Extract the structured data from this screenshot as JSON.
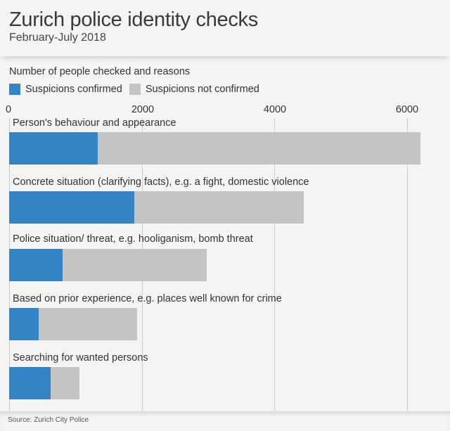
{
  "header": {
    "title": "Zurich police identity checks",
    "subtitle": "February-July 2018"
  },
  "chart": {
    "label": "Number of people checked and reasons",
    "legend": [
      {
        "label": "Suspicions confirmed",
        "color": "#3584c6"
      },
      {
        "label": "Suspicions not confirmed",
        "color": "#c4c4c4"
      }
    ],
    "ticks": [
      "0",
      "2000",
      "4000",
      "6000"
    ]
  },
  "footer": {
    "source": "Source: Zurich City Police"
  },
  "chart_data": {
    "type": "bar",
    "orientation": "horizontal",
    "stacked": true,
    "title": "Zurich police identity checks",
    "subtitle": "February-July 2018",
    "xlabel": "Number of people checked and reasons",
    "ylabel": "",
    "xlim": [
      0,
      6500
    ],
    "xticks": [
      0,
      2000,
      4000,
      6000
    ],
    "grid": true,
    "legend_position": "top",
    "categories": [
      "Person's behaviour and appearance",
      "Concrete situation (clarifying facts), e.g. a fight, domestic violence",
      "Police situation/ threat, e.g. hooliganism, bomb threat",
      "Based on prior experience, e.g. places well known for crime",
      "Searching for wanted persons"
    ],
    "series": [
      {
        "name": "Suspicions confirmed",
        "color": "#3584c6",
        "values": [
          1340,
          1890,
          810,
          450,
          625
        ]
      },
      {
        "name": "Suspicions not confirmed",
        "color": "#c4c4c4",
        "values": [
          4860,
          2555,
          2165,
          1475,
          440
        ]
      }
    ],
    "source": "Source: Zurich City Police"
  }
}
